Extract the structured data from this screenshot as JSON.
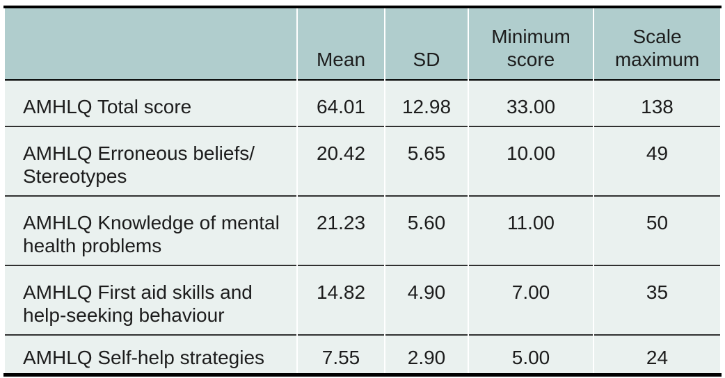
{
  "table": {
    "columns": [
      "",
      "Mean",
      "SD",
      "Minimum score",
      "Scale maximum"
    ],
    "rows": [
      {
        "cells": [
          "AMHLQ Total score",
          "64.01",
          "12.98",
          "33.00",
          "138"
        ]
      },
      {
        "cells": [
          "AMHLQ Erroneous beliefs/ Stereotypes",
          "20.42",
          "5.65",
          "10.00",
          "49"
        ]
      },
      {
        "cells": [
          "AMHLQ Knowledge of mental health problems",
          "21.23",
          "5.60",
          "11.00",
          "50"
        ]
      },
      {
        "cells": [
          "AMHLQ First aid skills and help-seeking behaviour",
          "14.82",
          "4.90",
          "7.00",
          "35"
        ]
      },
      {
        "cells": [
          "AMHLQ Self-help strategies",
          "7.55",
          "2.90",
          "5.00",
          "24"
        ]
      }
    ]
  },
  "colors": {
    "header_background": "#b0cdcd",
    "row_background": "#eaf1ef",
    "text": "#1c1c1c",
    "outer_border": "#000000",
    "row_separator": "#303030"
  }
}
